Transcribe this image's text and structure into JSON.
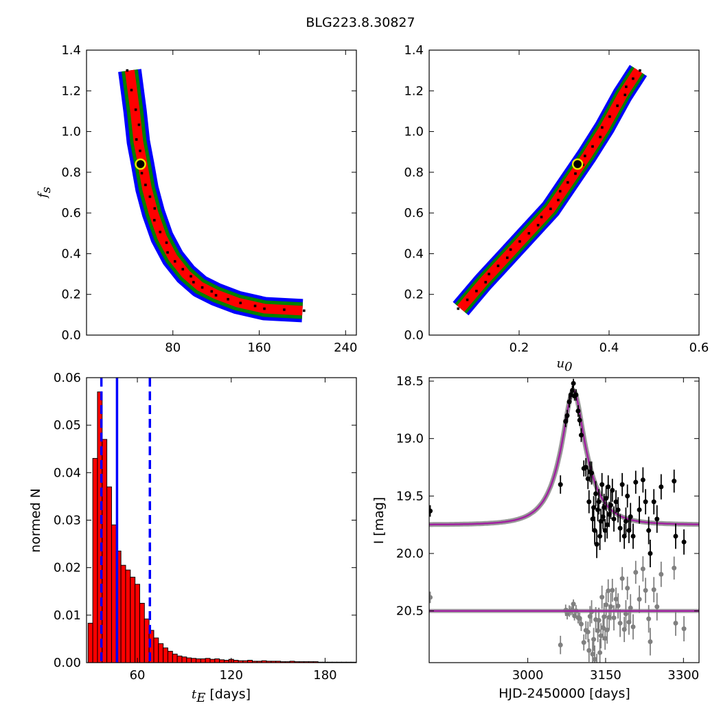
{
  "title": "BLG223.8.30827",
  "colors": {
    "band_inner": "#ff0000",
    "band_mid": "#008000",
    "band_outer": "#0000ff",
    "samples": "#000000",
    "best_fit_ring": "#e8e800",
    "hist_fill": "#ff0000",
    "hist_edge": "#000000",
    "marker_lines": "#0000ff",
    "model_curve": "#a020a0",
    "residual_points": "#808080"
  },
  "chart_data": [
    {
      "type": "heatmap",
      "id": "fs_vs_tE",
      "xlabel": "",
      "ylabel": "f_s",
      "xlim": [
        0,
        250
      ],
      "ylim": [
        0,
        1.4
      ],
      "xticks": [
        "80",
        "160",
        "240"
      ],
      "xtick_values": [
        80,
        160,
        240
      ],
      "yticks": [
        "0.0",
        "0.2",
        "0.4",
        "0.6",
        "0.8",
        "1.0",
        "1.2",
        "1.4"
      ],
      "ytick_values": [
        0,
        0.2,
        0.4,
        0.6,
        0.8,
        1.0,
        1.2,
        1.4
      ],
      "confidence_band_ridge": [
        [
          40,
          1.3
        ],
        [
          45,
          1.1
        ],
        [
          48,
          0.95
        ],
        [
          52,
          0.84
        ],
        [
          56,
          0.72
        ],
        [
          62,
          0.6
        ],
        [
          70,
          0.48
        ],
        [
          80,
          0.38
        ],
        [
          92,
          0.3
        ],
        [
          105,
          0.24
        ],
        [
          120,
          0.2
        ],
        [
          140,
          0.16
        ],
        [
          165,
          0.13
        ],
        [
          200,
          0.12
        ]
      ],
      "best_fit": {
        "x": 50,
        "y": 0.84
      }
    },
    {
      "type": "heatmap",
      "id": "fs_vs_u0",
      "xlabel": "u_0",
      "ylabel": "",
      "xlim": [
        0,
        0.6
      ],
      "ylim": [
        0,
        1.4
      ],
      "xticks": [
        "0.2",
        "0.4",
        "0.6"
      ],
      "xtick_values": [
        0.2,
        0.4,
        0.6
      ],
      "yticks": [
        "0.0",
        "0.2",
        "0.4",
        "0.6",
        "0.8",
        "1.0",
        "1.2",
        "1.4"
      ],
      "ytick_values": [
        0,
        0.2,
        0.4,
        0.6,
        0.8,
        1.0,
        1.2,
        1.4
      ],
      "confidence_band_ridge": [
        [
          0.07,
          0.13
        ],
        [
          0.12,
          0.26
        ],
        [
          0.17,
          0.38
        ],
        [
          0.22,
          0.5
        ],
        [
          0.27,
          0.62
        ],
        [
          0.31,
          0.75
        ],
        [
          0.35,
          0.88
        ],
        [
          0.39,
          1.02
        ],
        [
          0.43,
          1.18
        ],
        [
          0.465,
          1.3
        ]
      ],
      "best_fit": {
        "x": 0.33,
        "y": 0.84
      }
    },
    {
      "type": "bar",
      "id": "tE_histogram",
      "xlabel": "t_E  [days]",
      "ylabel": "normed N",
      "xlim": [
        27.5,
        200
      ],
      "ylim": [
        0,
        0.06
      ],
      "xticks": [
        "60",
        "120",
        "180"
      ],
      "xtick_values": [
        60,
        120,
        180
      ],
      "yticks": [
        "0.00",
        "0.01",
        "0.02",
        "0.03",
        "0.04",
        "0.05",
        "0.06"
      ],
      "ytick_values": [
        0,
        0.01,
        0.02,
        0.03,
        0.04,
        0.05,
        0.06
      ],
      "bin_start": 28.5,
      "bin_width": 3.0,
      "values": [
        0.0083,
        0.043,
        0.057,
        0.047,
        0.037,
        0.029,
        0.0235,
        0.0205,
        0.0195,
        0.018,
        0.0165,
        0.0125,
        0.0092,
        0.0068,
        0.0052,
        0.004,
        0.0031,
        0.0024,
        0.0018,
        0.0014,
        0.0012,
        0.001,
        0.0009,
        0.0008,
        0.0008,
        0.0009,
        0.0007,
        0.0008,
        0.0006,
        0.0005,
        0.0007,
        0.0005,
        0.0004,
        0.0004,
        0.0005,
        0.0003,
        0.0003,
        0.0004,
        0.0003,
        0.0003,
        0.0003,
        0.0002,
        0.0002,
        0.0003,
        0.0002,
        0.0002,
        0.0002,
        0.0002,
        0.0002,
        0.0001,
        0.0001,
        0.0001,
        0.0001,
        0.0001,
        0.0001,
        0.0001,
        0.0001
      ],
      "vlines": [
        {
          "x": 37,
          "style": "dashed"
        },
        {
          "x": 47,
          "style": "solid"
        },
        {
          "x": 68,
          "style": "dashed"
        }
      ]
    },
    {
      "type": "scatter",
      "id": "light_curve",
      "xlabel": "HJD-2450000 [days]",
      "ylabel": "I [mag]",
      "xlim": [
        2810,
        3330
      ],
      "ylim": [
        20.95,
        18.47
      ],
      "xticks": [
        "3000",
        "3150",
        "3300"
      ],
      "xtick_values": [
        3000,
        3150,
        3300
      ],
      "yticks": [
        "18.5",
        "19.0",
        "19.5",
        "20.0",
        "20.5"
      ],
      "ytick_values": [
        18.5,
        19.0,
        19.5,
        20.0,
        20.5
      ],
      "model": {
        "baseline": 19.75,
        "t0": 3088,
        "peak": 18.58,
        "tE": 50,
        "u0": 0.33
      },
      "residual_offset": 20.5,
      "points": [
        {
          "t": 2812,
          "m": 19.63,
          "e": 0.05
        },
        {
          "t": 3063,
          "m": 19.4,
          "e": 0.08
        },
        {
          "t": 3073,
          "m": 18.85,
          "e": 0.05
        },
        {
          "t": 3076,
          "m": 18.8,
          "e": 0.05
        },
        {
          "t": 3080,
          "m": 18.68,
          "e": 0.05
        },
        {
          "t": 3083,
          "m": 18.62,
          "e": 0.04
        },
        {
          "t": 3086,
          "m": 18.58,
          "e": 0.04
        },
        {
          "t": 3088,
          "m": 18.52,
          "e": 0.04
        },
        {
          "t": 3090,
          "m": 18.63,
          "e": 0.04
        },
        {
          "t": 3093,
          "m": 18.62,
          "e": 0.05
        },
        {
          "t": 3097,
          "m": 18.76,
          "e": 0.05
        },
        {
          "t": 3100,
          "m": 18.84,
          "e": 0.05
        },
        {
          "t": 3103,
          "m": 18.97,
          "e": 0.06
        },
        {
          "t": 3108,
          "m": 19.26,
          "e": 0.07
        },
        {
          "t": 3112,
          "m": 19.25,
          "e": 0.08
        },
        {
          "t": 3116,
          "m": 19.35,
          "e": 0.09
        },
        {
          "t": 3118,
          "m": 19.55,
          "e": 0.1
        },
        {
          "t": 3120,
          "m": 19.29,
          "e": 0.09
        },
        {
          "t": 3123,
          "m": 19.3,
          "e": 0.1
        },
        {
          "t": 3125,
          "m": 19.7,
          "e": 0.11
        },
        {
          "t": 3127,
          "m": 19.6,
          "e": 0.1
        },
        {
          "t": 3129,
          "m": 19.8,
          "e": 0.12
        },
        {
          "t": 3131,
          "m": 19.48,
          "e": 0.11
        },
        {
          "t": 3133,
          "m": 19.92,
          "e": 0.12
        },
        {
          "t": 3135,
          "m": 19.62,
          "e": 0.1
        },
        {
          "t": 3137,
          "m": 19.55,
          "e": 0.11
        },
        {
          "t": 3139,
          "m": 19.85,
          "e": 0.12
        },
        {
          "t": 3141,
          "m": 19.72,
          "e": 0.11
        },
        {
          "t": 3143,
          "m": 19.4,
          "e": 0.1
        },
        {
          "t": 3145,
          "m": 19.68,
          "e": 0.11
        },
        {
          "t": 3147,
          "m": 19.6,
          "e": 0.12
        },
        {
          "t": 3149,
          "m": 19.8,
          "e": 0.1
        },
        {
          "t": 3151,
          "m": 19.52,
          "e": 0.11
        },
        {
          "t": 3153,
          "m": 19.75,
          "e": 0.12
        },
        {
          "t": 3155,
          "m": 19.42,
          "e": 0.1
        },
        {
          "t": 3157,
          "m": 19.66,
          "e": 0.11
        },
        {
          "t": 3160,
          "m": 19.58,
          "e": 0.12
        },
        {
          "t": 3163,
          "m": 19.45,
          "e": 0.1
        },
        {
          "t": 3166,
          "m": 19.7,
          "e": 0.11
        },
        {
          "t": 3170,
          "m": 19.55,
          "e": 0.1
        },
        {
          "t": 3174,
          "m": 19.62,
          "e": 0.11
        },
        {
          "t": 3178,
          "m": 19.78,
          "e": 0.12
        },
        {
          "t": 3182,
          "m": 19.4,
          "e": 0.1
        },
        {
          "t": 3186,
          "m": 19.85,
          "e": 0.11
        },
        {
          "t": 3189,
          "m": 19.72,
          "e": 0.12
        },
        {
          "t": 3192,
          "m": 19.5,
          "e": 0.1
        },
        {
          "t": 3195,
          "m": 19.8,
          "e": 0.11
        },
        {
          "t": 3198,
          "m": 19.68,
          "e": 0.12
        },
        {
          "t": 3203,
          "m": 19.85,
          "e": 0.11
        },
        {
          "t": 3208,
          "m": 19.38,
          "e": 0.1
        },
        {
          "t": 3215,
          "m": 19.62,
          "e": 0.12
        },
        {
          "t": 3222,
          "m": 19.36,
          "e": 0.11
        },
        {
          "t": 3227,
          "m": 19.55,
          "e": 0.11
        },
        {
          "t": 3233,
          "m": 19.8,
          "e": 0.12
        },
        {
          "t": 3236,
          "m": 20.0,
          "e": 0.12
        },
        {
          "t": 3243,
          "m": 19.55,
          "e": 0.11
        },
        {
          "t": 3249,
          "m": 19.7,
          "e": 0.12
        },
        {
          "t": 3257,
          "m": 19.42,
          "e": 0.11
        },
        {
          "t": 3282,
          "m": 19.37,
          "e": 0.1
        },
        {
          "t": 3285,
          "m": 19.85,
          "e": 0.11
        },
        {
          "t": 3301,
          "m": 19.9,
          "e": 0.11
        }
      ]
    }
  ]
}
